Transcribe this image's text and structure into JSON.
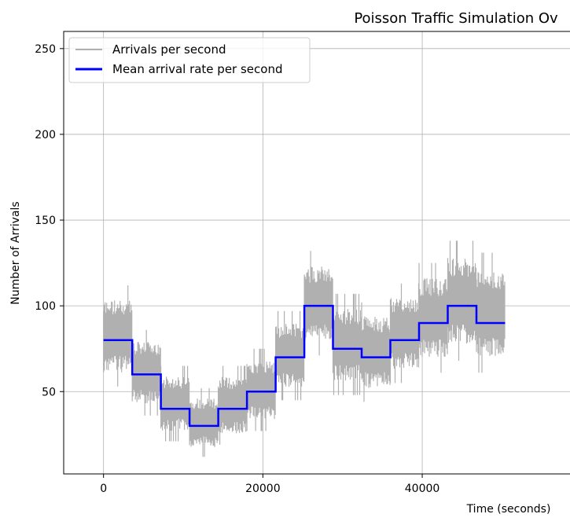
{
  "chart_data": {
    "type": "line",
    "title": "Poisson Traffic Simulation Ov",
    "xlabel": "Time (seconds)",
    "ylabel": "Number of Arrivals",
    "xlim": [
      -5000,
      62000
    ],
    "ylim": [
      2,
      260
    ],
    "x_ticks": [
      0,
      20000,
      40000
    ],
    "x_tick_labels": [
      "0",
      "20000",
      "40000"
    ],
    "y_ticks": [
      50,
      100,
      150,
      200,
      250
    ],
    "y_tick_labels": [
      "50",
      "100",
      "150",
      "200",
      "250"
    ],
    "grid": true,
    "legend": {
      "placement": "top-left",
      "entries": [
        "Arrivals per second",
        "Mean arrival rate per second"
      ]
    },
    "series": [
      {
        "name": "Arrivals per second",
        "color": "#b0b0b0",
        "kind": "noisy-band",
        "segments": [
          {
            "x0": 0,
            "x1": 3600,
            "low": 53,
            "high": 112
          },
          {
            "x0": 3600,
            "x1": 7200,
            "low": 36,
            "high": 86
          },
          {
            "x0": 7200,
            "x1": 10800,
            "low": 21,
            "high": 65
          },
          {
            "x0": 10800,
            "x1": 14400,
            "low": 12,
            "high": 52
          },
          {
            "x0": 14400,
            "x1": 18000,
            "low": 19,
            "high": 65
          },
          {
            "x0": 18000,
            "x1": 21600,
            "low": 27,
            "high": 75
          },
          {
            "x0": 21600,
            "x1": 25200,
            "low": 45,
            "high": 97
          },
          {
            "x0": 25200,
            "x1": 28800,
            "low": 71,
            "high": 132
          },
          {
            "x0": 28800,
            "x1": 32400,
            "low": 48,
            "high": 107
          },
          {
            "x0": 32400,
            "x1": 36000,
            "low": 44,
            "high": 102
          },
          {
            "x0": 36000,
            "x1": 39600,
            "low": 55,
            "high": 113
          },
          {
            "x0": 39600,
            "x1": 43200,
            "low": 61,
            "high": 125
          },
          {
            "x0": 43200,
            "x1": 46800,
            "low": 68,
            "high": 138
          },
          {
            "x0": 46800,
            "x1": 50400,
            "low": 61,
            "high": 131
          }
        ]
      },
      {
        "name": "Mean arrival rate per second",
        "color": "#0000ff",
        "kind": "step",
        "steps": [
          {
            "x0": 0,
            "x1": 3600,
            "y": 80
          },
          {
            "x0": 3600,
            "x1": 7200,
            "y": 60
          },
          {
            "x0": 7200,
            "x1": 10800,
            "y": 40
          },
          {
            "x0": 10800,
            "x1": 14400,
            "y": 30
          },
          {
            "x0": 14400,
            "x1": 18000,
            "y": 40
          },
          {
            "x0": 18000,
            "x1": 21600,
            "y": 50
          },
          {
            "x0": 21600,
            "x1": 25200,
            "y": 70
          },
          {
            "x0": 25200,
            "x1": 28800,
            "y": 100
          },
          {
            "x0": 28800,
            "x1": 32400,
            "y": 75
          },
          {
            "x0": 32400,
            "x1": 36000,
            "y": 70
          },
          {
            "x0": 36000,
            "x1": 39600,
            "y": 80
          },
          {
            "x0": 39600,
            "x1": 43200,
            "y": 90
          },
          {
            "x0": 43200,
            "x1": 46800,
            "y": 100
          },
          {
            "x0": 46800,
            "x1": 50400,
            "y": 90
          }
        ]
      }
    ]
  }
}
